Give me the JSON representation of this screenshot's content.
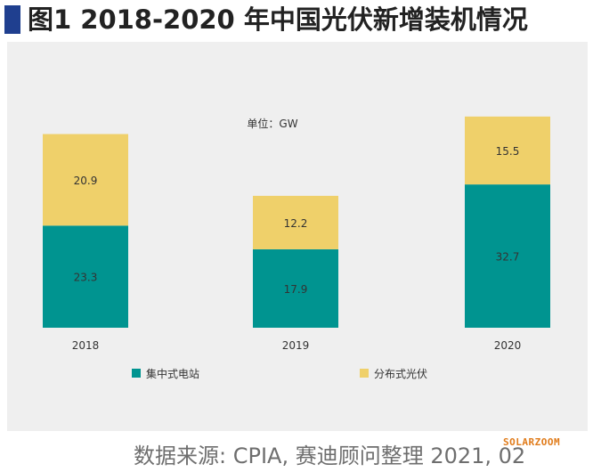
{
  "header": {
    "title": "图1 2018-2020 年中国光伏新增装机情况"
  },
  "footer": {
    "source": "数据来源: CPIA, 赛迪顾问整理  2021, 02",
    "brand": "SOLARZOOM"
  },
  "colors": {
    "series_bottom": "#009490",
    "series_top": "#efd06a",
    "panel_bg": "#efefef",
    "title_bar": "#1f3f8f"
  },
  "chart_data": {
    "type": "bar",
    "stacked": true,
    "unit_label": "单位：GW",
    "categories": [
      "2018",
      "2019",
      "2020"
    ],
    "series": [
      {
        "name": "集中式电站",
        "values": [
          23.3,
          17.9,
          32.7
        ]
      },
      {
        "name": "分布式光伏",
        "values": [
          20.9,
          12.2,
          15.5
        ]
      }
    ],
    "data_labels": [
      [
        "23.3",
        "17.9",
        "32.7"
      ],
      [
        "20.9",
        "12.2",
        "15.5"
      ]
    ],
    "ylim": [
      0,
      50
    ],
    "grid": false,
    "legend_position": "bottom"
  }
}
